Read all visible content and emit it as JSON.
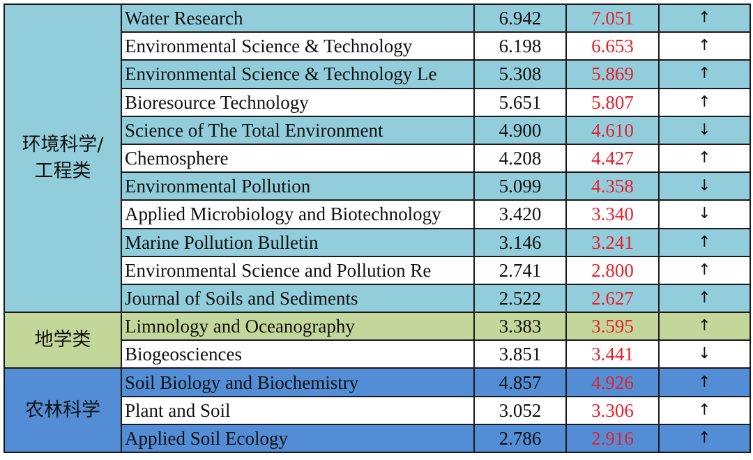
{
  "colors": {
    "env_band": "#92cddc",
    "geo_band": "#c4d79b",
    "agri_band": "#538dd5",
    "plain": "#ffffff",
    "new_value_text": "#e8202a",
    "border": "#1a1a1a"
  },
  "groups": [
    {
      "category": "环境科学/工程类",
      "band_color_key": "env_band",
      "rows": [
        {
          "journal": "Water Research",
          "old_if": "6.942",
          "new_if": "7.051",
          "trend": "↑"
        },
        {
          "journal": "Environmental Science & Technology",
          "old_if": "6.198",
          "new_if": "6.653",
          "trend": "↑"
        },
        {
          "journal": "Environmental Science & Technology Le",
          "old_if": "5.308",
          "new_if": "5.869",
          "trend": "↑"
        },
        {
          "journal": "Bioresource Technology",
          "old_if": "5.651",
          "new_if": "5.807",
          "trend": "↑"
        },
        {
          "journal": "Science of The Total Environment",
          "old_if": "4.900",
          "new_if": "4.610",
          "trend": "↓"
        },
        {
          "journal": "Chemosphere",
          "old_if": "4.208",
          "new_if": "4.427",
          "trend": "↑"
        },
        {
          "journal": "Environmental Pollution",
          "old_if": "5.099",
          "new_if": "4.358",
          "trend": "↓"
        },
        {
          "journal": "Applied Microbiology and Biotechnology",
          "old_if": "3.420",
          "new_if": "3.340",
          "trend": "↓"
        },
        {
          "journal": "Marine Pollution Bulletin",
          "old_if": "3.146",
          "new_if": "3.241",
          "trend": "↑"
        },
        {
          "journal": "Environmental Science and Pollution Re",
          "old_if": "2.741",
          "new_if": "2.800",
          "trend": "↑"
        },
        {
          "journal": "Journal of Soils and Sediments",
          "old_if": "2.522",
          "new_if": "2.627",
          "trend": "↑"
        }
      ]
    },
    {
      "category": "地学类",
      "band_color_key": "geo_band",
      "rows": [
        {
          "journal": "Limnology and Oceanography",
          "old_if": "3.383",
          "new_if": "3.595",
          "trend": "↑"
        },
        {
          "journal": "Biogeosciences",
          "old_if": "3.851",
          "new_if": "3.441",
          "trend": "↓"
        }
      ]
    },
    {
      "category": "农林科学",
      "band_color_key": "agri_band",
      "rows": [
        {
          "journal": "Soil Biology and Biochemistry",
          "old_if": "4.857",
          "new_if": "4.926",
          "trend": "↑"
        },
        {
          "journal": "Plant and Soil",
          "old_if": "3.052",
          "new_if": "3.306",
          "trend": "↑"
        },
        {
          "journal": "Applied Soil Ecology",
          "old_if": "2.786",
          "new_if": "2.916",
          "trend": "↑"
        }
      ]
    }
  ]
}
